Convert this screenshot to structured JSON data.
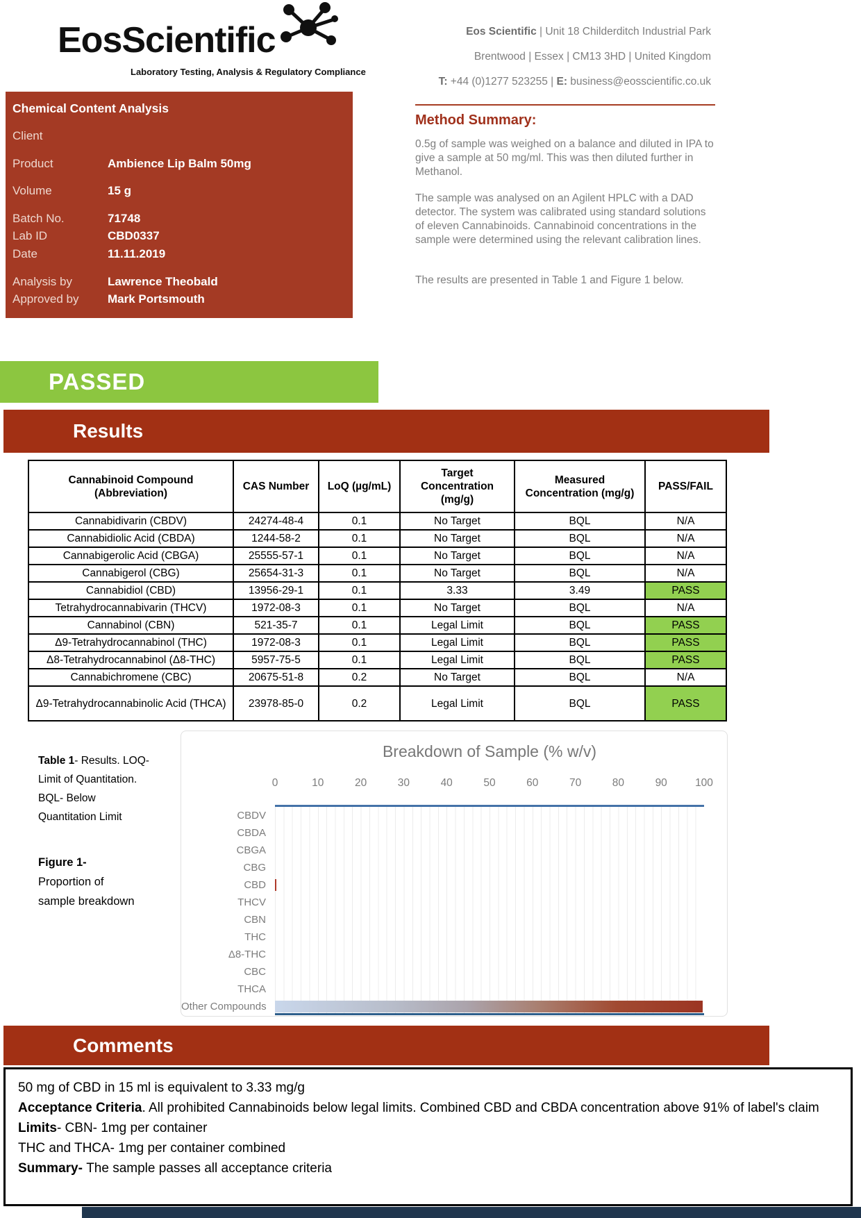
{
  "logo": {
    "brand": "EosScientific",
    "tagline": "Laboratory Testing, Analysis & Regulatory Compliance"
  },
  "contact": {
    "line1_bold": "Eos Scientific ",
    "line1_rest": "| Unit 18 Childerditch Industrial Park",
    "line2": "Brentwood | Essex | CM13 3HD | United Kingdom",
    "t_label": "T: ",
    "t_value": "+44 (0)1277 523255 | ",
    "e_label": "E: ",
    "e_value": "business@eosscientific.co.uk"
  },
  "info_box": {
    "title": "Chemical Content Analysis",
    "client_label": "Client",
    "product_label": "Product",
    "product": "Ambience Lip Balm 50mg",
    "volume_label": "Volume",
    "volume": "15 g",
    "batch_label": "Batch No.",
    "batch": "71748",
    "lab_id_label": "Lab ID",
    "lab_id": "CBD0337",
    "date_label": "Date",
    "date": "11.11.2019",
    "analysis_label": "Analysis by",
    "analysis": "Lawrence Theobald",
    "approved_label": "Approved by",
    "approved": "Mark Portsmouth"
  },
  "method": {
    "heading": "Method Summary:",
    "p1": "0.5g of sample was weighed on a balance and diluted in IPA to give a sample at 50 mg/ml. This was then diluted further in Methanol.",
    "p2": "The sample was analysed on an Agilent HPLC with a DAD detector. The system was calibrated using standard solutions of eleven Cannabinoids. Cannabinoid concentrations in the sample were determined using the relevant calibration lines.",
    "p3": "The results are presented in Table 1 and Figure 1 below."
  },
  "status_banner": "PASSED",
  "results": {
    "heading": "Results",
    "table": {
      "headers": [
        "Cannabinoid Compound (Abbreviation)",
        "CAS Number",
        "LoQ (µg/mL)",
        "Target Concentration (mg/g)",
        "Measured Concentration (mg/g)",
        "PASS/FAIL"
      ],
      "rows": [
        {
          "compound": "Cannabidivarin (CBDV)",
          "cas": "24274-48-4",
          "loq": "0.1",
          "target": "No Target",
          "measured": "BQL",
          "passfail": "N/A",
          "pass": false
        },
        {
          "compound": "Cannabidiolic Acid (CBDA)",
          "cas": "1244-58-2",
          "loq": "0.1",
          "target": "No Target",
          "measured": "BQL",
          "passfail": "N/A",
          "pass": false
        },
        {
          "compound": "Cannabigerolic Acid (CBGA)",
          "cas": "25555-57-1",
          "loq": "0.1",
          "target": "No Target",
          "measured": "BQL",
          "passfail": "N/A",
          "pass": false
        },
        {
          "compound": "Cannabigerol (CBG)",
          "cas": "25654-31-3",
          "loq": "0.1",
          "target": "No Target",
          "measured": "BQL",
          "passfail": "N/A",
          "pass": false
        },
        {
          "compound": "Cannabidiol (CBD)",
          "cas": "13956-29-1",
          "loq": "0.1",
          "target": "3.33",
          "measured": "3.49",
          "passfail": "PASS",
          "pass": true
        },
        {
          "compound": "Tetrahydrocannabivarin (THCV)",
          "cas": "1972-08-3",
          "loq": "0.1",
          "target": "No Target",
          "measured": "BQL",
          "passfail": "N/A",
          "pass": false
        },
        {
          "compound": "Cannabinol (CBN)",
          "cas": "521-35-7",
          "loq": "0.1",
          "target": "Legal Limit",
          "measured": "BQL",
          "passfail": "PASS",
          "pass": true
        },
        {
          "compound": "Δ9-Tetrahydrocannabinol (THC)",
          "cas": "1972-08-3",
          "loq": "0.1",
          "target": "Legal Limit",
          "measured": "BQL",
          "passfail": "PASS",
          "pass": true
        },
        {
          "compound": "Δ8-Tetrahydrocannabinol (Δ8-THC)",
          "cas": "5957-75-5",
          "loq": "0.1",
          "target": "Legal Limit",
          "measured": "BQL",
          "passfail": "PASS",
          "pass": true
        },
        {
          "compound": "Cannabichromene (CBC)",
          "cas": "20675-51-8",
          "loq": "0.2",
          "target": "No Target",
          "measured": "BQL",
          "passfail": "N/A",
          "pass": false
        },
        {
          "compound": "Δ9-Tetrahydrocannabinolic Acid (THCA)",
          "cas": "23978-85-0",
          "loq": "0.2",
          "target": "Legal Limit",
          "measured": "BQL",
          "passfail": "PASS",
          "pass": true
        }
      ]
    },
    "table_note_bold": "Table 1",
    "table_note_line1_rest": "- Results. LOQ-",
    "table_note_line2": "Limit of Quantitation.",
    "table_note_line3": "BQL- Below",
    "table_note_line4": "Quantitation Limit",
    "figure_note_bold": "Figure 1-",
    "figure_note_line2": "Proportion of",
    "figure_note_line3": "sample breakdown"
  },
  "chart_data": {
    "type": "bar",
    "orientation": "horizontal",
    "title": "Breakdown of Sample (% w/v)",
    "categories": [
      "CBDV",
      "CBDA",
      "CBGA",
      "CBG",
      "CBD",
      "THCV",
      "CBN",
      "THC",
      "Δ8-THC",
      "CBC",
      "THCA",
      "Other Compounds"
    ],
    "values": [
      0,
      0,
      0,
      0,
      0.35,
      0,
      0,
      0,
      0,
      0,
      0,
      99.65
    ],
    "xlim": [
      0,
      100
    ],
    "x_ticks": [
      0,
      10,
      20,
      30,
      40,
      50,
      60,
      70,
      80,
      90,
      100
    ],
    "value_axis_position": "top",
    "grid": true,
    "bar_colors": {
      "CBD": "#AF3A2A",
      "Other Compounds": "blue-to-red-gradient"
    }
  },
  "comments": {
    "heading": "Comments",
    "line1": "50 mg of CBD in 15 ml is equivalent to 3.33 mg/g",
    "line2_bold": "Acceptance Criteria",
    "line2_rest": ". All prohibited Cannabinoids below legal limits. Combined CBD and CBDA concentration above 91% of label's claim",
    "line3_bold": "Limits",
    "line3_rest": "- CBN- 1mg per container",
    "line4": "THC and THCA- 1mg per container combined",
    "line5_bold": "Summary- ",
    "line5_rest": "The sample passes all acceptance criteria"
  },
  "colors": {
    "brand_red": "#A43A24",
    "banner_red": "#A23014",
    "passed_green": "#8CC640",
    "pass_cell_green": "#92D050",
    "axis_blue_top": "#4472A8",
    "axis_blue_bottom": "#2E5F8B",
    "footer_navy": "#20364E",
    "gray_text": "#7F7F7F"
  }
}
